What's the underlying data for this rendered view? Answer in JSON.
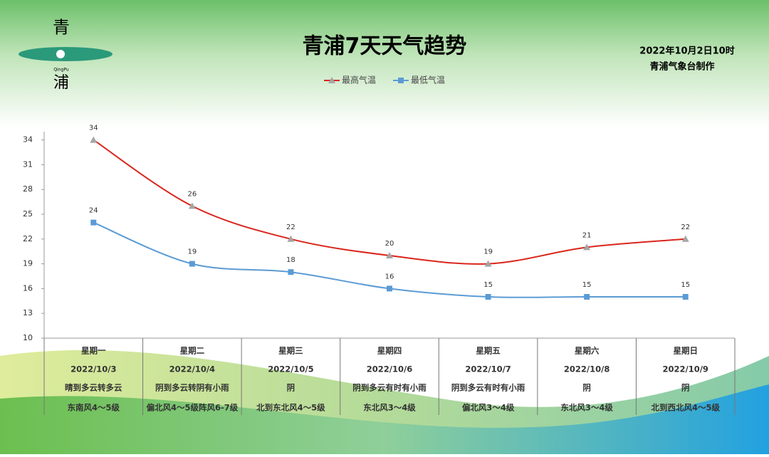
{
  "logo": {
    "top": "青",
    "latin": "QingPu",
    "bottom": "浦"
  },
  "issued": "2022年10月2日10时",
  "issuer": "青浦气象台制作",
  "chart_data": {
    "type": "line",
    "title": "青浦7天天气趋势",
    "categories": [
      "星期一",
      "星期二",
      "星期三",
      "星期四",
      "星期五",
      "星期六",
      "星期日"
    ],
    "dates": [
      "2022/10/3",
      "2022/10/4",
      "2022/10/5",
      "2022/10/6",
      "2022/10/7",
      "2022/10/8",
      "2022/10/9"
    ],
    "weather": [
      "晴到多云转多云",
      "阴到多云转阴有小雨",
      "阴",
      "阴到多云有时有小雨",
      "阴到多云有时有小雨",
      "阴",
      "阴"
    ],
    "wind": [
      "东南风4～5级",
      "偏北风4～5级阵风6-7级",
      "北到东北风4～5级",
      "东北风3～4级",
      "偏北风3～4级",
      "东北风3～4级",
      "北到西北风4～5级"
    ],
    "series": [
      {
        "name": "最高气温",
        "color": "#d9261c",
        "marker_color": "#a5a5a5",
        "marker": "triangle",
        "values": [
          34,
          26,
          22,
          20,
          19,
          21,
          22
        ]
      },
      {
        "name": "最低气温",
        "color": "#5b9bd5",
        "marker_color": "#5b9bd5",
        "marker": "square",
        "values": [
          24,
          19,
          18,
          16,
          15,
          15,
          15
        ]
      }
    ],
    "ylim": [
      10,
      35
    ],
    "yticks": [
      10,
      13,
      16,
      19,
      22,
      25,
      28,
      31,
      34
    ],
    "smooth": true
  }
}
